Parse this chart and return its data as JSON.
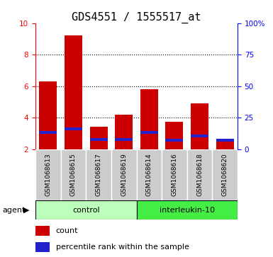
{
  "title": "GDS4551 / 1555517_at",
  "samples": [
    "GSM1068613",
    "GSM1068615",
    "GSM1068617",
    "GSM1068619",
    "GSM1068614",
    "GSM1068616",
    "GSM1068618",
    "GSM1068620"
  ],
  "count_values": [
    6.3,
    9.2,
    3.4,
    4.2,
    5.8,
    3.75,
    4.9,
    2.65
  ],
  "percentile_values": [
    3.05,
    3.3,
    2.6,
    2.6,
    3.05,
    2.55,
    2.85,
    2.55
  ],
  "bar_bottom": 2.0,
  "ylim_left": [
    2,
    10
  ],
  "ylim_right": [
    0,
    100
  ],
  "yticks_left": [
    2,
    4,
    6,
    8,
    10
  ],
  "ytick_labels_left": [
    "2",
    "4",
    "6",
    "8",
    "10"
  ],
  "yticks_right": [
    0,
    25,
    50,
    75,
    100
  ],
  "ytick_labels_right": [
    "0",
    "25",
    "50",
    "75",
    "100%"
  ],
  "bar_color_count": "#cc0000",
  "bar_color_percentile": "#2222cc",
  "bar_width": 0.7,
  "group_ctrl_color_light": "#bbffbb",
  "group_ctrl_color_dark": "#44ee44",
  "sample_bg_color": "#cccccc",
  "agent_label": "agent",
  "legend_count": "count",
  "legend_percentile": "percentile rank within the sample",
  "title_fontsize": 11,
  "tick_label_fontsize": 7.5,
  "sample_fontsize": 6.5,
  "group_fontsize": 8,
  "legend_fontsize": 8
}
